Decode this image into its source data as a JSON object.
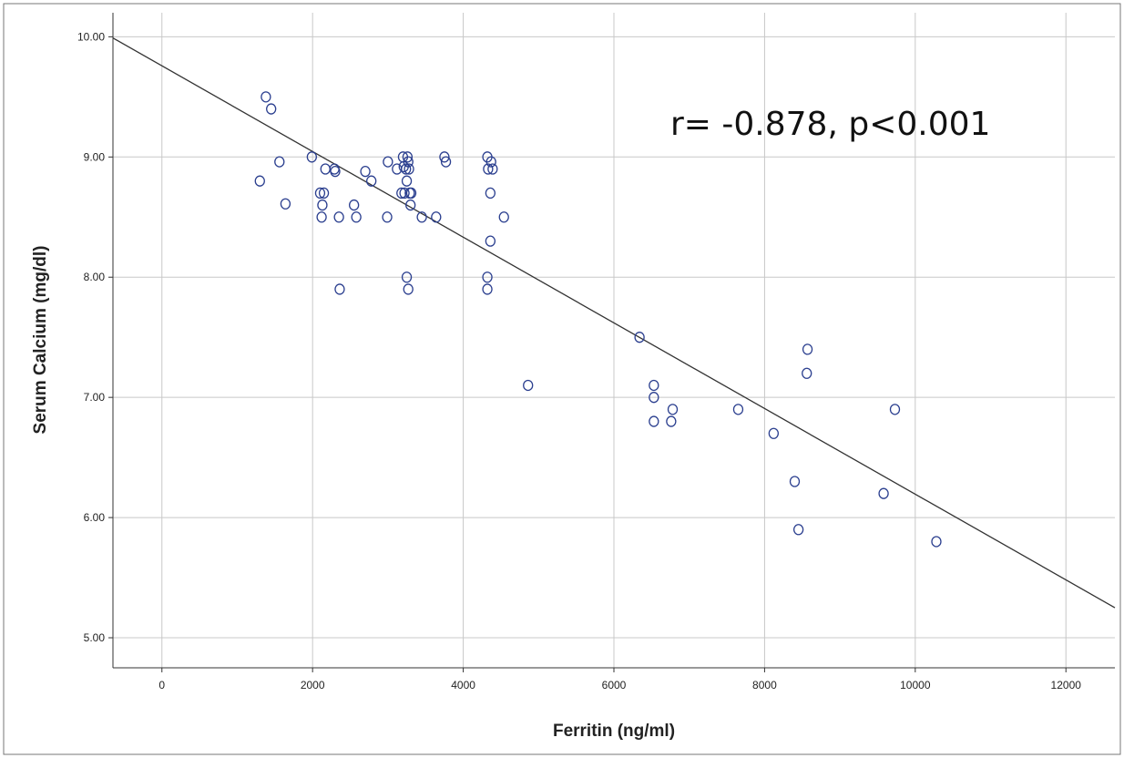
{
  "chart_data": {
    "type": "scatter",
    "xlabel": "Ferritin (ng/ml)",
    "ylabel": "Serum Calcium (mg/dl)",
    "annotation": "r= -0.878, p<0.001",
    "xlim": [
      -650,
      12650
    ],
    "ylim": [
      4.75,
      10.2
    ],
    "x_ticks": [
      0,
      2000,
      4000,
      6000,
      8000,
      10000,
      12000
    ],
    "x_tick_labels": [
      "0",
      "2000",
      "4000",
      "6000",
      "8000",
      "10000",
      "12000"
    ],
    "y_ticks": [
      5,
      6,
      7,
      8,
      9,
      10
    ],
    "y_tick_labels": [
      "5.00",
      "6.00",
      "7.00",
      "8.00",
      "9.00",
      "10.00"
    ],
    "grid": true,
    "marker_color": "#2b3f8f",
    "line_color": "#333333",
    "fit_line": {
      "x": [
        -650,
        12650
      ],
      "y": [
        9.99,
        5.25
      ]
    },
    "points": [
      {
        "x": 1300,
        "y": 8.8
      },
      {
        "x": 1380,
        "y": 9.5
      },
      {
        "x": 1450,
        "y": 9.4
      },
      {
        "x": 1560,
        "y": 8.96
      },
      {
        "x": 1640,
        "y": 8.61
      },
      {
        "x": 1990,
        "y": 9.0
      },
      {
        "x": 2100,
        "y": 8.7
      },
      {
        "x": 2120,
        "y": 8.5
      },
      {
        "x": 2130,
        "y": 8.6
      },
      {
        "x": 2150,
        "y": 8.7
      },
      {
        "x": 2170,
        "y": 8.9
      },
      {
        "x": 2290,
        "y": 8.9
      },
      {
        "x": 2300,
        "y": 8.88
      },
      {
        "x": 2350,
        "y": 8.5
      },
      {
        "x": 2360,
        "y": 7.9
      },
      {
        "x": 2550,
        "y": 8.6
      },
      {
        "x": 2580,
        "y": 8.5
      },
      {
        "x": 2700,
        "y": 8.88
      },
      {
        "x": 2780,
        "y": 8.8
      },
      {
        "x": 2990,
        "y": 8.5
      },
      {
        "x": 3000,
        "y": 8.96
      },
      {
        "x": 3120,
        "y": 8.9
      },
      {
        "x": 3180,
        "y": 8.7
      },
      {
        "x": 3200,
        "y": 9.0
      },
      {
        "x": 3210,
        "y": 8.92
      },
      {
        "x": 3220,
        "y": 8.7
      },
      {
        "x": 3240,
        "y": 8.9
      },
      {
        "x": 3250,
        "y": 8.8
      },
      {
        "x": 3250,
        "y": 8.0
      },
      {
        "x": 3260,
        "y": 9.0
      },
      {
        "x": 3270,
        "y": 7.9
      },
      {
        "x": 3270,
        "y": 8.96
      },
      {
        "x": 3280,
        "y": 8.9
      },
      {
        "x": 3290,
        "y": 8.7
      },
      {
        "x": 3300,
        "y": 8.6
      },
      {
        "x": 3310,
        "y": 8.7
      },
      {
        "x": 3450,
        "y": 8.5
      },
      {
        "x": 3640,
        "y": 8.5
      },
      {
        "x": 3750,
        "y": 9.0
      },
      {
        "x": 3770,
        "y": 8.96
      },
      {
        "x": 4320,
        "y": 9.0
      },
      {
        "x": 4320,
        "y": 8.0
      },
      {
        "x": 4320,
        "y": 7.9
      },
      {
        "x": 4330,
        "y": 8.9
      },
      {
        "x": 4360,
        "y": 8.3
      },
      {
        "x": 4360,
        "y": 8.7
      },
      {
        "x": 4370,
        "y": 8.96
      },
      {
        "x": 4390,
        "y": 8.9
      },
      {
        "x": 4540,
        "y": 8.5
      },
      {
        "x": 4860,
        "y": 7.1
      },
      {
        "x": 6340,
        "y": 7.5
      },
      {
        "x": 6530,
        "y": 7.1
      },
      {
        "x": 6530,
        "y": 7.0
      },
      {
        "x": 6530,
        "y": 6.8
      },
      {
        "x": 6760,
        "y": 6.8
      },
      {
        "x": 6780,
        "y": 6.9
      },
      {
        "x": 7650,
        "y": 6.9
      },
      {
        "x": 8120,
        "y": 6.7
      },
      {
        "x": 8400,
        "y": 6.3
      },
      {
        "x": 8450,
        "y": 5.9
      },
      {
        "x": 8560,
        "y": 7.2
      },
      {
        "x": 8570,
        "y": 7.4
      },
      {
        "x": 9580,
        "y": 6.2
      },
      {
        "x": 9730,
        "y": 6.9
      },
      {
        "x": 10280,
        "y": 5.8
      }
    ]
  }
}
